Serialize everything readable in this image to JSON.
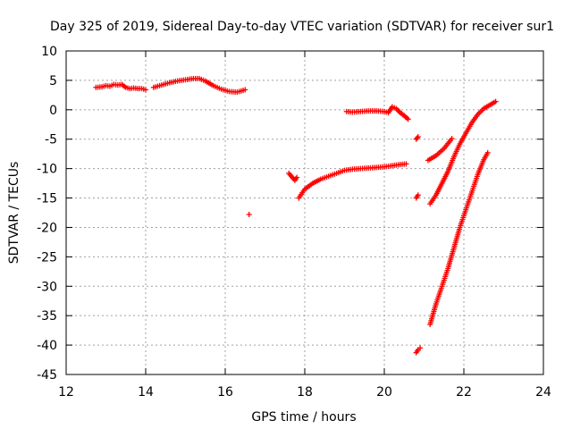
{
  "chart_data": {
    "type": "scatter",
    "title": "Day 325 of 2019, Sidereal Day-to-day VTEC variation (SDTVAR) for receiver sur1",
    "xlabel": "GPS time / hours",
    "ylabel": "SDTVAR / TECUs",
    "xlim": [
      12,
      24
    ],
    "ylim": [
      -45,
      10
    ],
    "xticks": [
      12,
      14,
      16,
      18,
      20,
      22,
      24
    ],
    "yticks": [
      10,
      5,
      0,
      -5,
      -10,
      -15,
      -20,
      -25,
      -30,
      -35,
      -40,
      -45
    ],
    "grid": true,
    "marker": "+",
    "color": "#ff0000",
    "segments": [
      {
        "x": [
          12.75,
          12.9,
          13.0,
          13.1,
          13.2,
          13.3,
          13.4,
          13.5,
          13.6,
          13.7,
          13.8,
          13.9,
          14.0
        ],
        "y": [
          3.8,
          3.9,
          4.1,
          4.0,
          4.3,
          4.2,
          4.3,
          3.8,
          3.6,
          3.7,
          3.6,
          3.6,
          3.4
        ]
      },
      {
        "x": [
          14.2,
          14.4,
          14.6,
          14.8,
          15.0,
          15.2,
          15.35,
          15.5,
          15.7,
          15.9,
          16.1,
          16.3,
          16.5
        ],
        "y": [
          3.8,
          4.2,
          4.6,
          4.9,
          5.1,
          5.3,
          5.3,
          4.9,
          4.1,
          3.5,
          3.1,
          3.0,
          3.4
        ]
      },
      {
        "x": [
          16.6
        ],
        "y": [
          -17.8
        ]
      },
      {
        "x": [
          17.6,
          17.75,
          17.8
        ],
        "y": [
          -10.8,
          -12.0,
          -11.5
        ]
      },
      {
        "x": [
          17.85,
          18.0,
          18.2,
          18.4,
          18.6,
          18.8,
          19.0,
          19.2,
          19.4,
          19.6,
          19.8,
          20.0,
          20.2,
          20.4,
          20.55
        ],
        "y": [
          -15.0,
          -13.5,
          -12.5,
          -11.8,
          -11.3,
          -10.8,
          -10.3,
          -10.1,
          -10.0,
          -9.9,
          -9.8,
          -9.7,
          -9.5,
          -9.3,
          -9.2
        ]
      },
      {
        "x": [
          19.05,
          19.2,
          19.4,
          19.6,
          19.8,
          20.0,
          20.1,
          20.2,
          20.3,
          20.4,
          20.5,
          20.6
        ],
        "y": [
          -0.3,
          -0.4,
          -0.3,
          -0.2,
          -0.2,
          -0.3,
          -0.5,
          0.5,
          0.2,
          -0.5,
          -1.0,
          -1.6
        ]
      },
      {
        "x": [
          20.8,
          20.85
        ],
        "y": [
          -5.0,
          -4.6
        ]
      },
      {
        "x": [
          20.8,
          20.85
        ],
        "y": [
          -15.0,
          -14.5
        ]
      },
      {
        "x": [
          20.8,
          20.85,
          20.9
        ],
        "y": [
          -41.3,
          -40.8,
          -40.5
        ]
      },
      {
        "x": [
          21.1,
          21.3,
          21.5,
          21.7
        ],
        "y": [
          -8.6,
          -7.8,
          -6.6,
          -4.9
        ]
      },
      {
        "x": [
          21.15,
          21.3,
          21.45,
          21.6,
          21.75,
          21.9,
          22.05,
          22.2,
          22.35,
          22.5,
          22.65,
          22.8
        ],
        "y": [
          -16.0,
          -14.5,
          -12.5,
          -10.5,
          -8.0,
          -5.8,
          -4.0,
          -2.2,
          -0.8,
          0.2,
          0.8,
          1.4
        ]
      },
      {
        "x": [
          21.15,
          21.3,
          21.45,
          21.6,
          21.75,
          21.9,
          22.05,
          22.2,
          22.35,
          22.5,
          22.6
        ],
        "y": [
          -36.5,
          -33.0,
          -30.0,
          -27.0,
          -23.5,
          -20.0,
          -17.0,
          -14.0,
          -11.0,
          -8.5,
          -7.3
        ]
      }
    ]
  }
}
